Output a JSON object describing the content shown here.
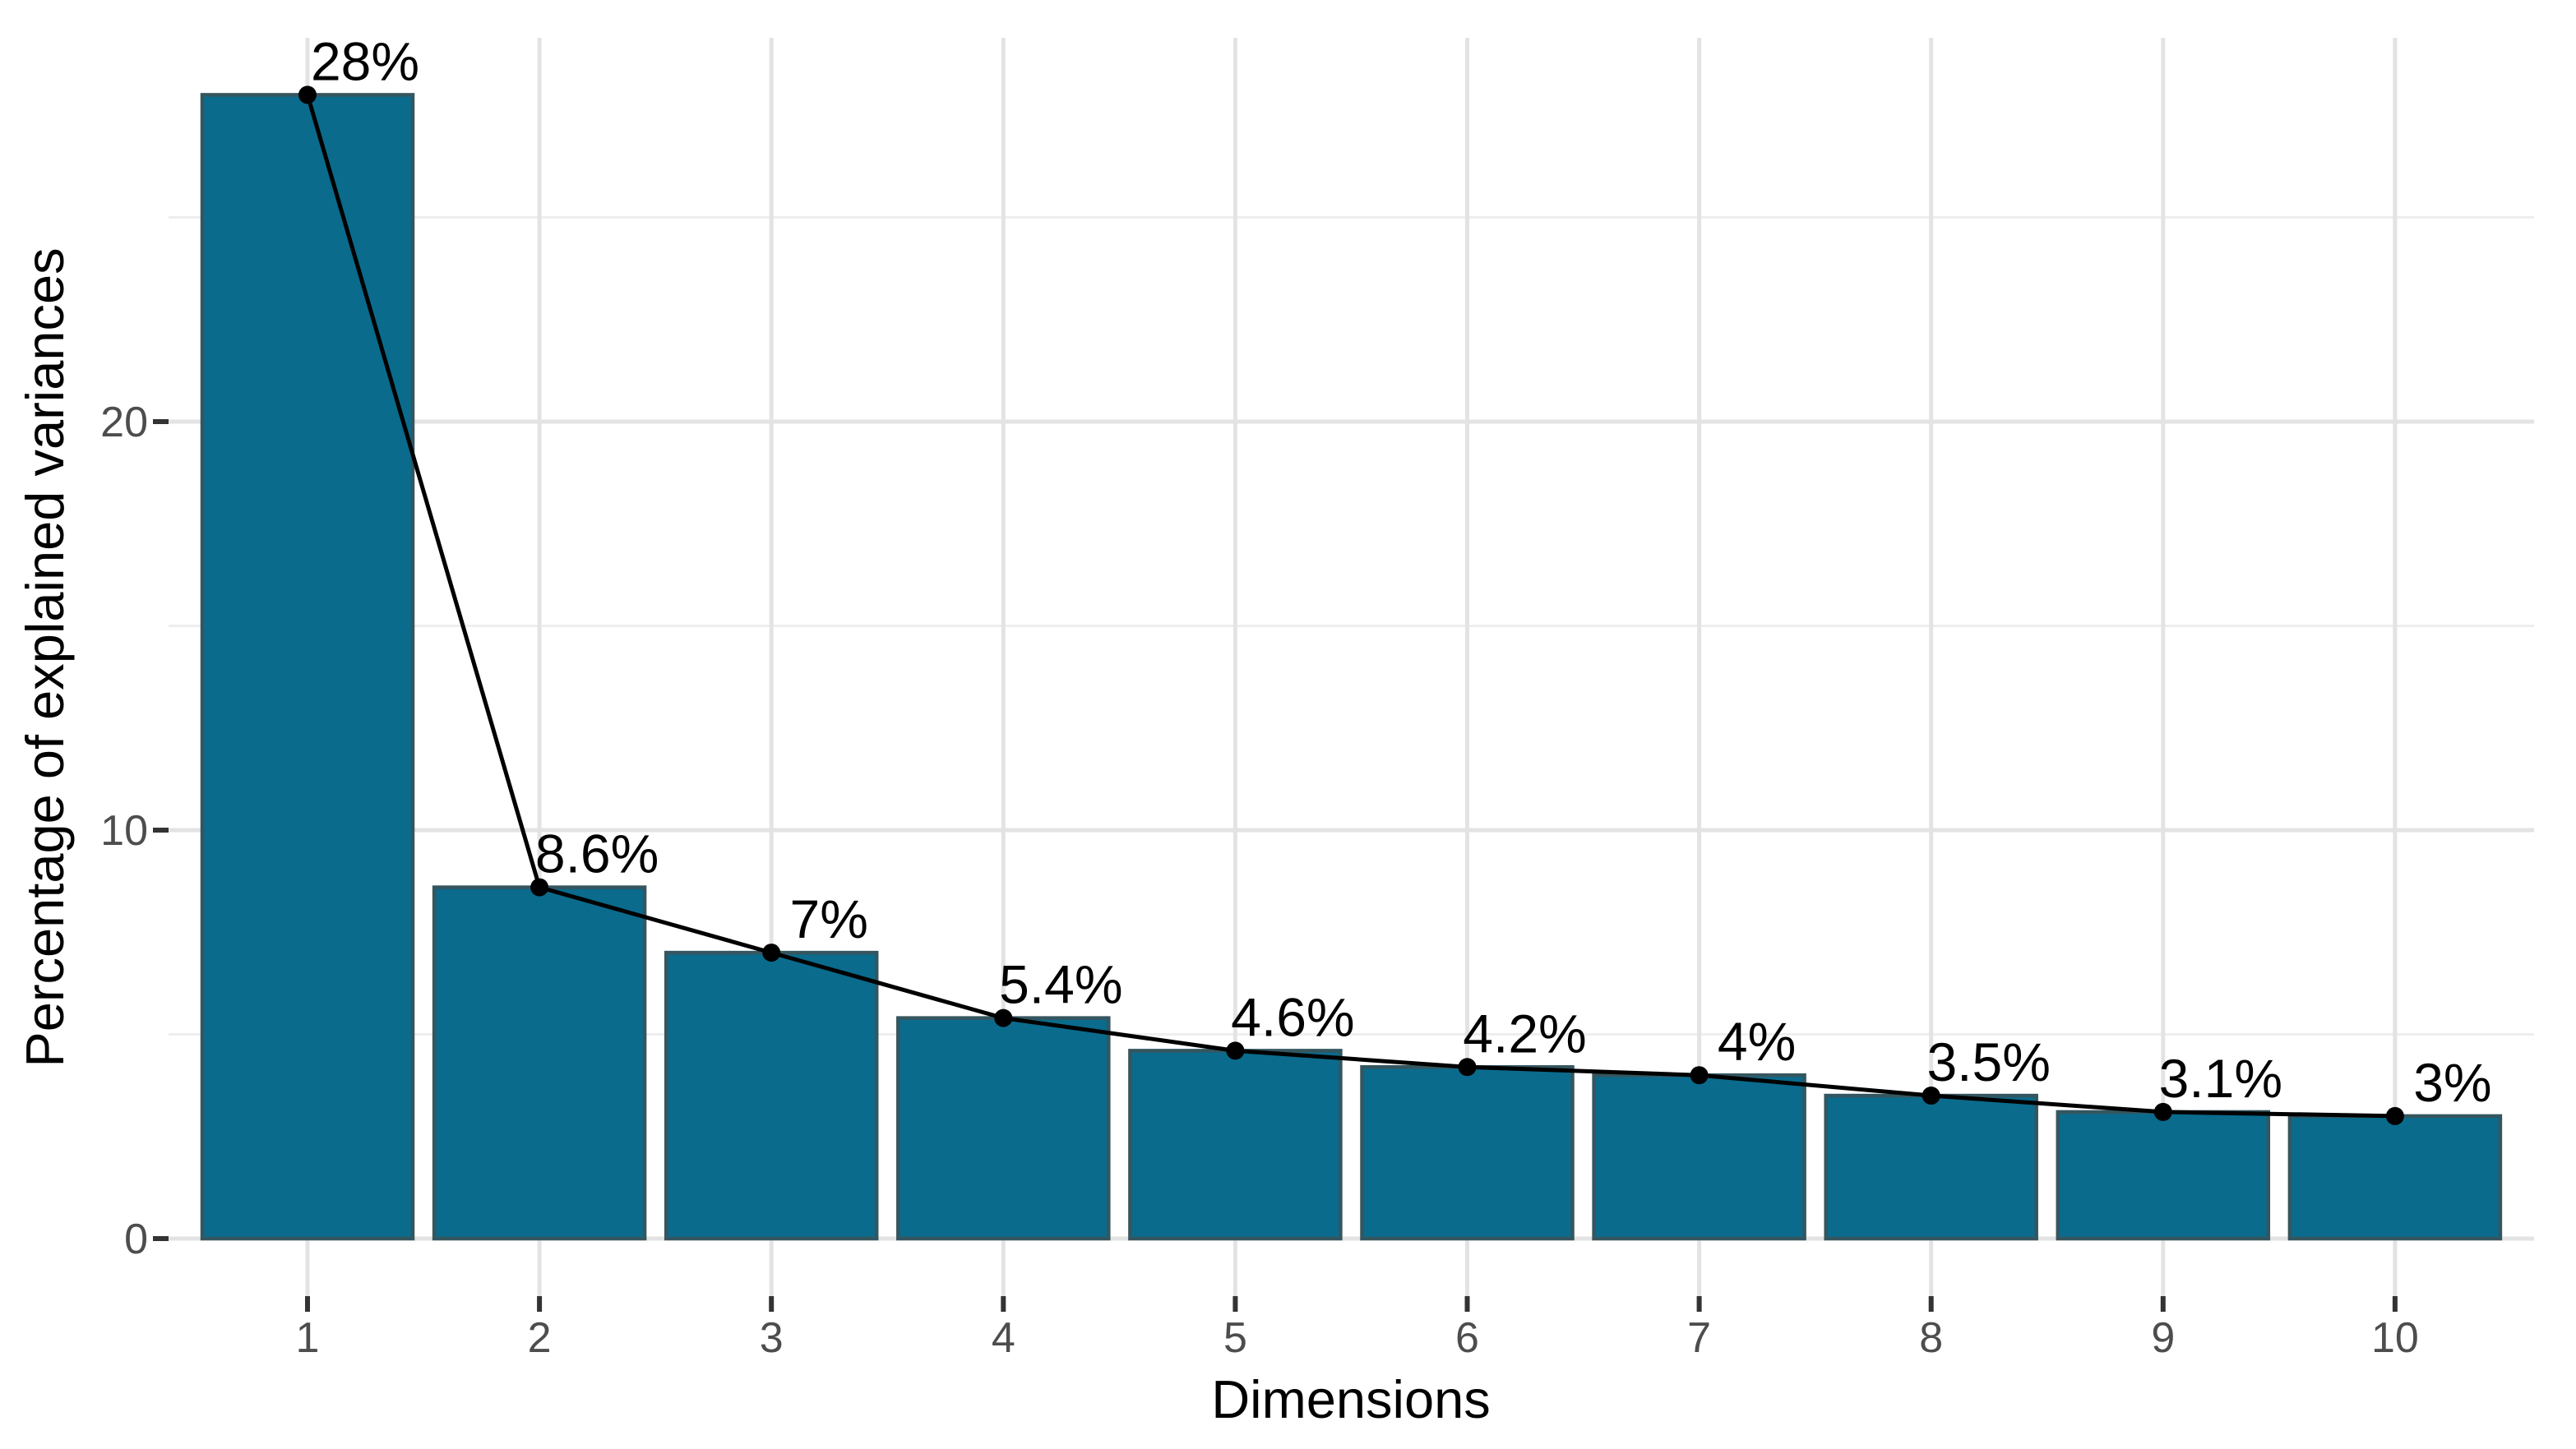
{
  "chart_data": {
    "type": "bar",
    "subtype": "scree-plot-bar-with-line-overlay",
    "title": "",
    "xlabel": "Dimensions",
    "ylabel": "Percentage of explained variances",
    "categories": [
      "1",
      "2",
      "3",
      "4",
      "5",
      "6",
      "7",
      "8",
      "9",
      "10"
    ],
    "values": [
      28,
      8.6,
      7,
      5.4,
      4.6,
      4.2,
      4,
      3.5,
      3.1,
      3
    ],
    "point_labels": [
      "28%",
      "8.6%",
      "7%",
      "5.4%",
      "4.6%",
      "4.2%",
      "4%",
      "3.5%",
      "3.1%",
      "3%"
    ],
    "y_major_ticks": [
      0,
      10,
      20
    ],
    "y_major_tick_labels": [
      "0",
      "10",
      "20"
    ],
    "y_minor_gridlines": [
      5,
      15,
      25
    ],
    "ylim": [
      -1.4,
      29.4
    ],
    "grid": true,
    "legend_position": "none",
    "colors": {
      "bar_fill": "#0a6b8d",
      "bar_border": "#35565f",
      "line": "#000000",
      "point": "#000000",
      "data_label_text": "#000000",
      "tick_label_text": "#4d4d4d",
      "axis_title_text": "#000000",
      "grid_major": "#e3e3e3",
      "grid_minor": "#eeeeee",
      "tick_mark": "#333333",
      "background": "#ffffff"
    }
  }
}
